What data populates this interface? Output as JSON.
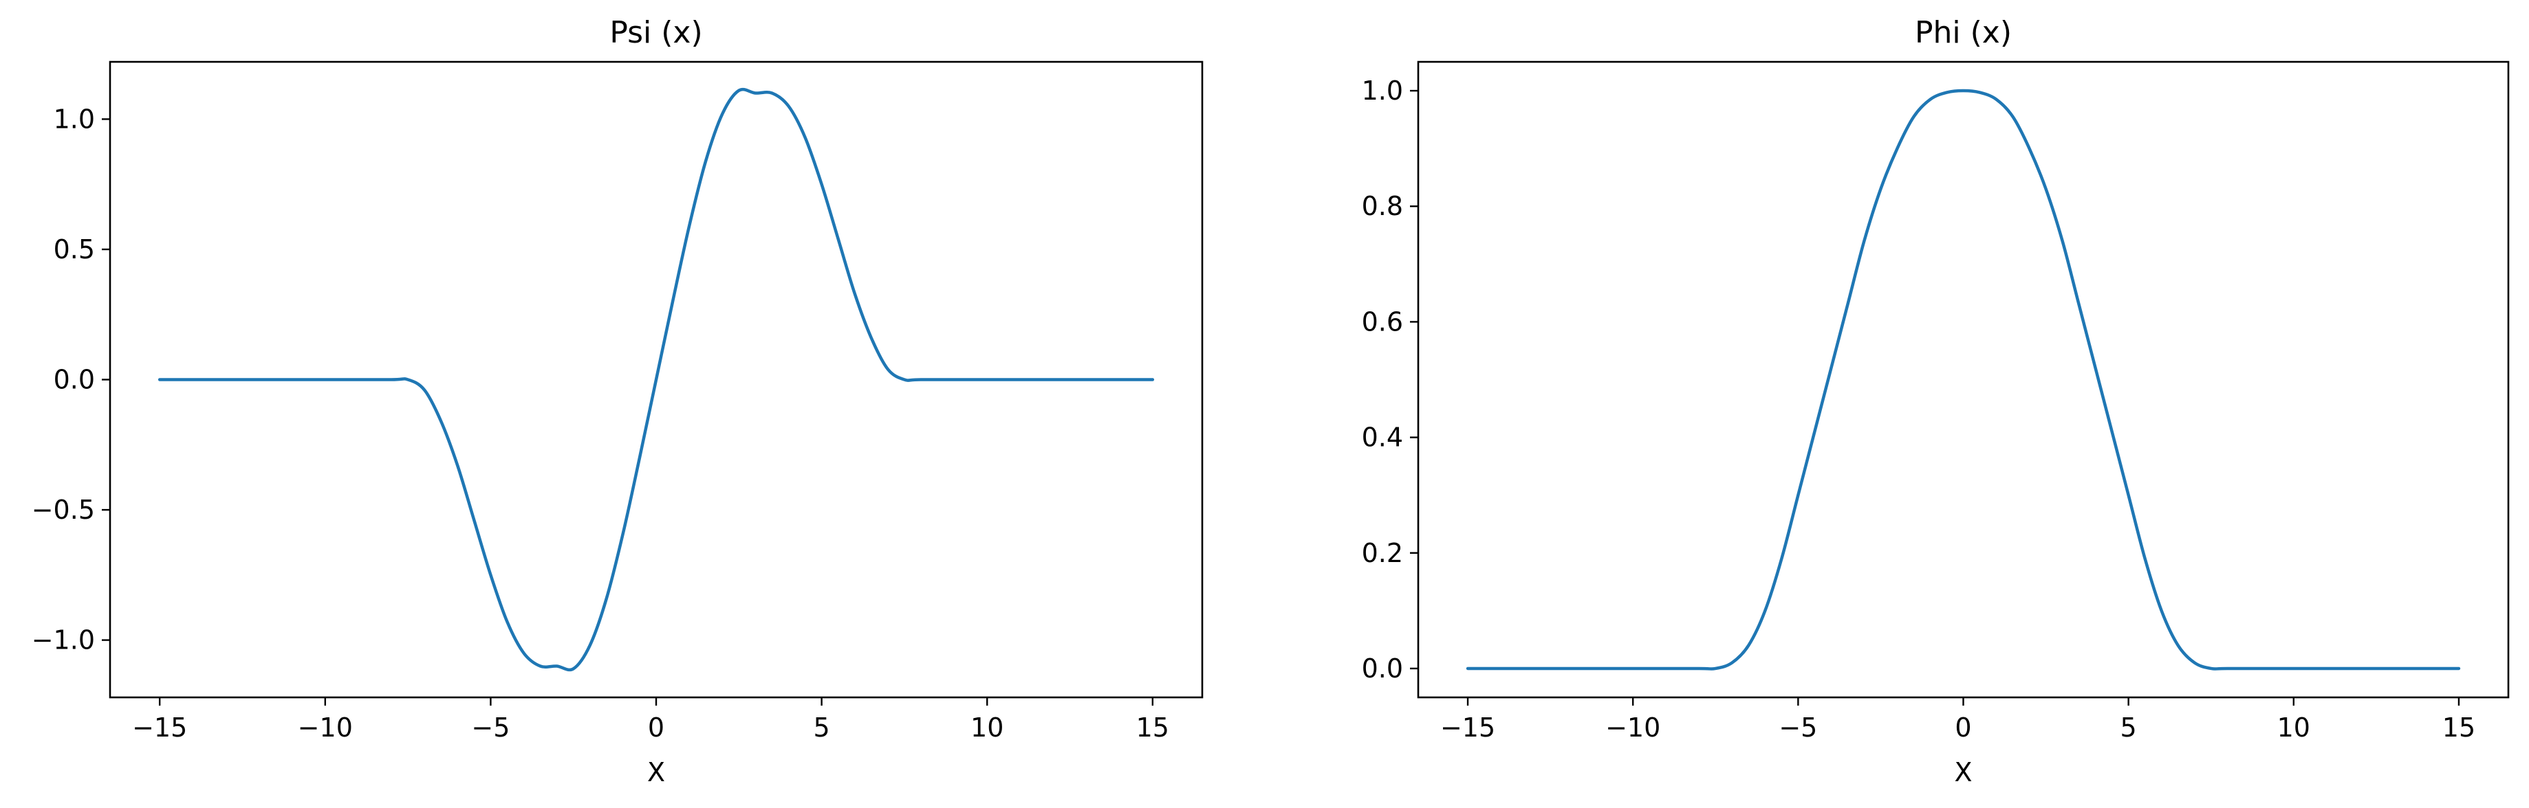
{
  "chart_data": [
    {
      "type": "line",
      "title": "Psi (x)",
      "xlabel": "X",
      "ylabel": "",
      "xlim": [
        -16.5,
        16.5
      ],
      "ylim": [
        -1.22,
        1.22
      ],
      "xticks": [
        -15,
        -10,
        -5,
        0,
        5,
        10,
        15
      ],
      "xtick_labels": [
        "−15",
        "−10",
        "−5",
        "0",
        "5",
        "10",
        "15"
      ],
      "yticks": [
        -1.0,
        -0.5,
        0.0,
        0.5,
        1.0
      ],
      "ytick_labels": [
        "−1.0",
        "−0.5",
        "0.0",
        "0.5",
        "1.0"
      ],
      "grid": false,
      "color": "#1f77b4",
      "series": [
        {
          "x": [
            -15,
            -12.5,
            -10,
            -8,
            -7.5,
            -7,
            -6.5,
            -6,
            -5.5,
            -5,
            -4.5,
            -4,
            -3.5,
            -3,
            -2.5,
            -2,
            -1.5,
            -1,
            -0.5,
            0,
            0.5,
            1,
            1.5,
            2,
            2.5,
            3,
            3.5,
            4,
            4.5,
            5,
            5.5,
            6,
            6.5,
            7,
            7.5,
            8,
            10,
            12.5,
            15
          ],
          "y": [
            0,
            0,
            0,
            0,
            0,
            -0.04,
            -0.16,
            -0.33,
            -0.54,
            -0.75,
            -0.93,
            -1.05,
            -1.1,
            -1.1,
            -1.11,
            -1.02,
            -0.84,
            -0.59,
            -0.3,
            0.0,
            0.3,
            0.59,
            0.84,
            1.02,
            1.11,
            1.1,
            1.1,
            1.05,
            0.93,
            0.75,
            0.54,
            0.33,
            0.16,
            0.04,
            0,
            0,
            0,
            0,
            0
          ]
        }
      ]
    },
    {
      "type": "line",
      "title": "Phi (x)",
      "xlabel": "X",
      "ylabel": "",
      "xlim": [
        -16.5,
        16.5
      ],
      "ylim": [
        -0.05,
        1.05
      ],
      "xticks": [
        -15,
        -10,
        -5,
        0,
        5,
        10,
        15
      ],
      "xtick_labels": [
        "−15",
        "−10",
        "−5",
        "0",
        "5",
        "10",
        "15"
      ],
      "yticks": [
        0.0,
        0.2,
        0.4,
        0.6,
        0.8,
        1.0
      ],
      "ytick_labels": [
        "0.0",
        "0.2",
        "0.4",
        "0.6",
        "0.8",
        "1.0"
      ],
      "grid": false,
      "color": "#1f77b4",
      "series": [
        {
          "x": [
            -15,
            -12.5,
            -10,
            -8,
            -7.5,
            -7,
            -6.5,
            -6,
            -5.5,
            -5,
            -4.5,
            -4,
            -3.5,
            -3,
            -2.5,
            -2,
            -1.5,
            -1,
            -0.5,
            0,
            0.5,
            1,
            1.5,
            2,
            2.5,
            3,
            3.5,
            4,
            4.5,
            5,
            5.5,
            6,
            6.5,
            7,
            7.5,
            8,
            10,
            12.5,
            15
          ],
          "y": [
            0,
            0,
            0,
            0,
            0,
            0.01,
            0.04,
            0.1,
            0.19,
            0.3,
            0.41,
            0.52,
            0.63,
            0.74,
            0.83,
            0.9,
            0.955,
            0.985,
            0.997,
            1.0,
            0.997,
            0.985,
            0.955,
            0.9,
            0.83,
            0.74,
            0.63,
            0.52,
            0.41,
            0.3,
            0.19,
            0.1,
            0.04,
            0.01,
            0,
            0,
            0,
            0,
            0
          ]
        }
      ]
    }
  ]
}
